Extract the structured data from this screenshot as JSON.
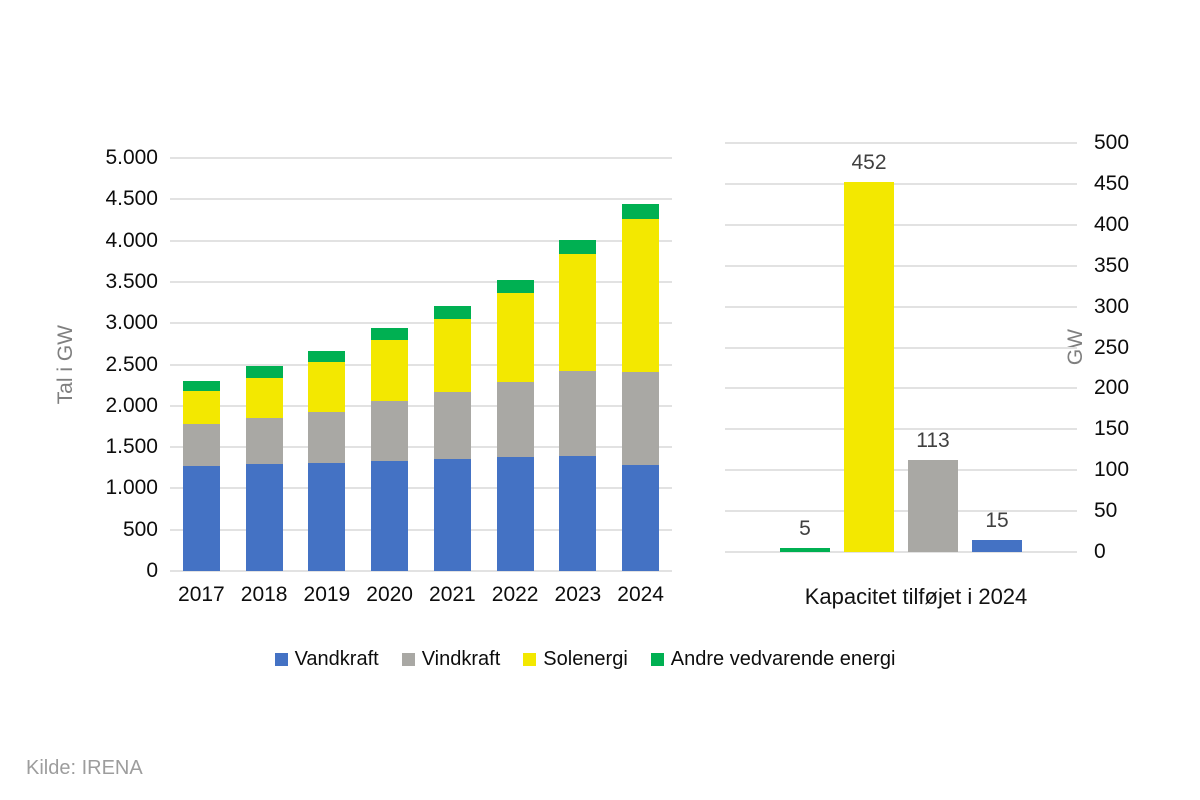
{
  "source": {
    "text": "Kilde: IRENA"
  },
  "colors": {
    "vandkraft": "#4472C4",
    "vindkraft": "#A9A8A4",
    "solenergi": "#F3E800",
    "andre_vedvarende_energi": "#00B052",
    "gridline": "#E2E2E2",
    "axis_tick_text": "#0D0D0D",
    "axis_title_text": "#7F7F7F",
    "value_label_text": "#404040",
    "source_text": "#9D9D9D"
  },
  "legend": {
    "items": [
      {
        "key": "vandkraft",
        "label": "Vandkraft",
        "color": "#4472C4"
      },
      {
        "key": "vindkraft",
        "label": "Vindkraft",
        "color": "#A9A8A4"
      },
      {
        "key": "solenergi",
        "label": "Solenergi",
        "color": "#F3E800"
      },
      {
        "key": "andre-vedvarende-energi",
        "label": "Andre vedvarende energi",
        "color": "#00B052"
      }
    ]
  },
  "chart_data": [
    {
      "type": "bar",
      "stacked": true,
      "title": "",
      "xlabel": "",
      "ylabel": "Tal i GW",
      "ylim": [
        0,
        5000
      ],
      "ytick_interval": 500,
      "ytick_labels": [
        "0",
        "500",
        "1.000",
        "1.500",
        "2.000",
        "2.500",
        "3.000",
        "3.500",
        "4.000",
        "4.500",
        "5.000"
      ],
      "grid": true,
      "legend_position": "bottom",
      "categories": [
        "2017",
        "2018",
        "2019",
        "2020",
        "2021",
        "2022",
        "2023",
        "2024"
      ],
      "series": [
        {
          "key": "vandkraft",
          "name": "Vandkraft",
          "color": "#4472C4",
          "values": [
            1270,
            1290,
            1310,
            1330,
            1350,
            1385,
            1395,
            1280
          ]
        },
        {
          "key": "vindkraft",
          "name": "Vindkraft",
          "color": "#A9A8A4",
          "values": [
            515,
            560,
            620,
            730,
            820,
            905,
            1025,
            1125
          ]
        },
        {
          "key": "solenergi",
          "name": "Solenergi",
          "color": "#F3E800",
          "values": [
            390,
            490,
            600,
            740,
            880,
            1075,
            1420,
            1855
          ]
        },
        {
          "key": "andre-vedvarende-energi",
          "name": "Andre vedvarende energi",
          "color": "#00B052",
          "values": [
            130,
            140,
            135,
            140,
            155,
            155,
            165,
            185
          ]
        }
      ]
    },
    {
      "type": "bar",
      "stacked": false,
      "title": "Kapacitet tilføjet i 2024",
      "xlabel": "",
      "ylabel": "GW",
      "ylim": [
        0,
        500
      ],
      "ytick_interval": 50,
      "ytick_labels": [
        "0",
        "50",
        "100",
        "150",
        "200",
        "250",
        "300",
        "350",
        "400",
        "450",
        "500"
      ],
      "grid": true,
      "axis_side": "right",
      "categories": [
        "Andre vedvarende energi",
        "Solenergi",
        "Vindkraft",
        "Vandkraft"
      ],
      "keys": [
        "andre-vedvarende-energi",
        "solenergi",
        "vindkraft",
        "vandkraft"
      ],
      "values": [
        5,
        452,
        113,
        15
      ],
      "data_labels": [
        "5",
        "452",
        "113",
        "15"
      ],
      "bar_colors": [
        "#00B052",
        "#F3E800",
        "#A9A8A4",
        "#4472C4"
      ]
    }
  ]
}
